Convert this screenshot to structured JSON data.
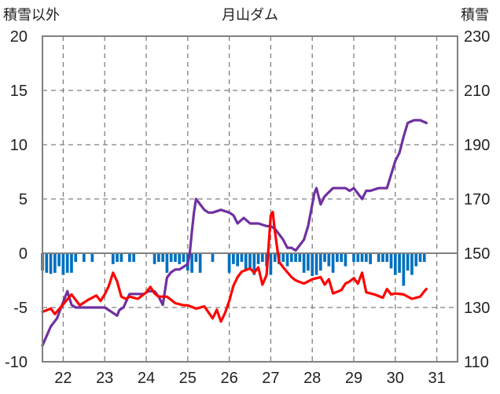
{
  "chart_data": {
    "type": "line",
    "title": "月山ダム",
    "y_left_label": "積雪以外",
    "y_right_label": "積雪",
    "y_left_range": [
      -10,
      20
    ],
    "y_right_range": [
      110,
      230
    ],
    "x_range": [
      21.5,
      31.5
    ],
    "y_left_ticks": [
      "20",
      "15",
      "10",
      "5",
      "0",
      "-5",
      "-10"
    ],
    "y_right_ticks": [
      "230",
      "210",
      "190",
      "170",
      "150",
      "130",
      "110"
    ],
    "x_ticks": [
      "22",
      "23",
      "24",
      "25",
      "26",
      "27",
      "28",
      "29",
      "30",
      "31"
    ],
    "grid": "dashed, at each day",
    "colors": {
      "snow_depth": "#7030A0",
      "temperature": "#FF0000",
      "precipitation": "#0070C0"
    },
    "series": [
      {
        "axis": "right",
        "color": "#7030A0",
        "x": [
          21.5,
          21.7,
          21.85,
          22.0,
          22.1,
          22.2,
          22.3,
          22.4,
          22.55,
          22.8,
          23.0,
          23.1,
          23.2,
          23.3,
          23.35,
          23.45,
          23.6,
          23.8,
          23.95,
          24.05,
          24.15,
          24.2,
          24.3,
          24.4,
          24.5,
          24.6,
          24.7,
          24.8,
          24.9,
          25.0,
          25.05,
          25.1,
          25.15,
          25.2,
          25.3,
          25.4,
          25.5,
          25.6,
          25.8,
          26.0,
          26.1,
          26.2,
          26.35,
          26.5,
          26.7,
          26.9,
          27.0,
          27.1,
          27.2,
          27.3,
          27.4,
          27.5,
          27.6,
          27.7,
          27.8,
          27.9,
          28.0,
          28.05,
          28.1,
          28.2,
          28.3,
          28.5,
          28.7,
          28.8,
          28.9,
          29.0,
          29.1,
          29.2,
          29.3,
          29.4,
          29.6,
          29.8,
          29.9,
          30.0,
          30.1,
          30.2,
          30.3,
          30.45,
          30.6,
          30.75
        ],
        "values": [
          116,
          123,
          126,
          132,
          136,
          131,
          130,
          130,
          130,
          130,
          130,
          129,
          128,
          127,
          129,
          130,
          135,
          135,
          135,
          136,
          136,
          136,
          134,
          131,
          141,
          143,
          144,
          144,
          145,
          146,
          150,
          158,
          165,
          170,
          168,
          166,
          165,
          165,
          166,
          165,
          164,
          161,
          163,
          161,
          161,
          160,
          160,
          159,
          157,
          155,
          152,
          152,
          151,
          153,
          155,
          160,
          168,
          172,
          174,
          168,
          171,
          174,
          174,
          174,
          173,
          174,
          172,
          170,
          173,
          173,
          174,
          174,
          179,
          184,
          187,
          193,
          198,
          199,
          199,
          198
        ]
      },
      {
        "axis": "left",
        "color": "#FF0000",
        "x": [
          21.5,
          21.7,
          21.8,
          22.0,
          22.2,
          22.4,
          22.6,
          22.8,
          22.9,
          23.0,
          23.1,
          23.2,
          23.3,
          23.4,
          23.5,
          23.6,
          23.8,
          24.0,
          24.1,
          24.2,
          24.3,
          24.5,
          24.7,
          24.9,
          25.0,
          25.2,
          25.4,
          25.6,
          25.7,
          25.8,
          25.9,
          26.0,
          26.1,
          26.2,
          26.3,
          26.5,
          26.6,
          26.7,
          26.8,
          26.9,
          27.0,
          27.05,
          27.1,
          27.2,
          27.3,
          27.5,
          27.6,
          27.8,
          28.0,
          28.2,
          28.3,
          28.4,
          28.5,
          28.7,
          28.8,
          28.9,
          29.0,
          29.1,
          29.2,
          29.3,
          29.5,
          29.7,
          29.8,
          29.9,
          30.0,
          30.2,
          30.4,
          30.6,
          30.7,
          30.75
        ],
        "values": [
          -5.4,
          -5.1,
          -5.6,
          -4.7,
          -3.8,
          -4.8,
          -4.3,
          -3.9,
          -4.4,
          -3.8,
          -3.0,
          -1.8,
          -2.6,
          -4.0,
          -4.2,
          -4.0,
          -4.2,
          -3.6,
          -3.1,
          -3.7,
          -4.0,
          -4.0,
          -4.6,
          -4.8,
          -4.8,
          -5.1,
          -4.9,
          -6.0,
          -5.2,
          -6.3,
          -5.5,
          -4.4,
          -3.0,
          -2.2,
          -1.7,
          -1.4,
          -1.8,
          -1.3,
          -2.9,
          -2.0,
          3.5,
          3.8,
          2.0,
          -0.8,
          -1.3,
          -2.2,
          -2.5,
          -2.8,
          -2.4,
          -2.2,
          -2.9,
          -2.4,
          -3.7,
          -3.4,
          -2.8,
          -2.6,
          -2.3,
          -2.8,
          -1.8,
          -3.6,
          -3.8,
          -4.1,
          -3.3,
          -3.8,
          -3.7,
          -3.8,
          -4.2,
          -4.0,
          -3.5,
          -3.3
        ]
      },
      {
        "axis": "left",
        "type": "bar",
        "color": "#0070C0",
        "x": [
          21.5,
          21.6,
          21.7,
          21.8,
          21.9,
          22.0,
          22.1,
          22.2,
          22.3,
          22.5,
          22.7,
          23.2,
          23.3,
          23.4,
          23.6,
          23.7,
          24.2,
          24.3,
          24.4,
          24.5,
          24.6,
          24.7,
          24.8,
          24.9,
          25.0,
          25.1,
          25.2,
          25.3,
          25.6,
          26.0,
          26.1,
          26.2,
          26.3,
          26.4,
          26.5,
          26.6,
          26.7,
          26.8,
          26.9,
          27.0,
          27.1,
          27.2,
          27.3,
          27.4,
          27.5,
          27.6,
          27.7,
          27.8,
          27.9,
          28.0,
          28.1,
          28.2,
          28.3,
          28.4,
          28.5,
          28.6,
          28.7,
          28.8,
          29.0,
          29.1,
          29.2,
          29.3,
          29.4,
          29.6,
          29.7,
          29.8,
          29.9,
          30.0,
          30.1,
          30.2,
          30.3,
          30.4,
          30.5,
          30.6,
          30.7
        ],
        "values": [
          -1.6,
          -1.8,
          -1.9,
          -1.8,
          -1.2,
          -2.0,
          -1.8,
          -1.8,
          -0.8,
          -0.8,
          -0.8,
          -1.0,
          -0.8,
          -0.8,
          -0.8,
          -0.8,
          -1.0,
          -0.8,
          -0.8,
          -1.8,
          -0.8,
          -0.8,
          -1.0,
          -0.8,
          -1.6,
          -1.8,
          -0.8,
          -1.8,
          -0.8,
          -1.8,
          -1.0,
          -1.2,
          -0.8,
          -1.6,
          -1.4,
          -2.0,
          -1.0,
          -0.8,
          -1.2,
          -2.0,
          -0.8,
          -1.0,
          -0.8,
          -1.2,
          -0.8,
          -0.8,
          -0.8,
          -1.8,
          -1.6,
          -2.1,
          -2.0,
          -1.6,
          -0.8,
          -1.2,
          -1.8,
          -0.8,
          -0.8,
          -1.2,
          -0.8,
          -0.8,
          -0.8,
          -0.8,
          -1.0,
          -0.8,
          -0.8,
          -0.8,
          -1.4,
          -2.0,
          -1.8,
          -3.0,
          -1.6,
          -2.0,
          -1.2,
          -0.8,
          -0.8
        ]
      }
    ]
  }
}
